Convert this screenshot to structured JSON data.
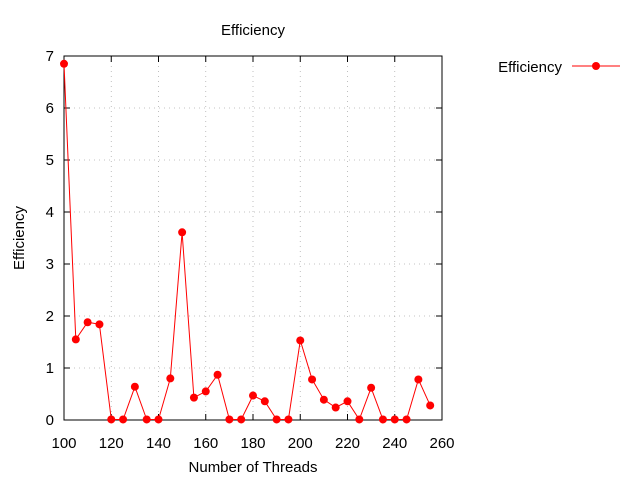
{
  "chart_data": {
    "type": "line",
    "title": "Efficiency",
    "xlabel": "Number of Threads",
    "ylabel": "Efficiency",
    "xlim": [
      100,
      260
    ],
    "ylim": [
      0,
      7
    ],
    "x_ticks": [
      100,
      120,
      140,
      160,
      180,
      200,
      220,
      240,
      260
    ],
    "y_ticks": [
      0,
      1,
      2,
      3,
      4,
      5,
      6,
      7
    ],
    "grid": true,
    "legend_position": "outside-top-right",
    "series": [
      {
        "name": "Efficiency",
        "color": "#ff0000",
        "marker": "circle",
        "x": [
          100,
          105,
          110,
          115,
          120,
          125,
          130,
          135,
          140,
          145,
          150,
          155,
          160,
          165,
          170,
          175,
          180,
          185,
          190,
          195,
          200,
          205,
          210,
          215,
          220,
          225,
          230,
          235,
          240,
          245,
          250,
          255
        ],
        "values": [
          6.85,
          1.55,
          1.88,
          1.84,
          0.01,
          0.01,
          0.64,
          0.01,
          0.01,
          0.8,
          3.61,
          0.43,
          0.55,
          0.87,
          0.01,
          0.01,
          0.47,
          0.36,
          0.01,
          0.01,
          1.53,
          0.78,
          0.39,
          0.24,
          0.36,
          0.01,
          0.62,
          0.01,
          0.01,
          0.01,
          0.78,
          0.28
        ]
      }
    ]
  }
}
